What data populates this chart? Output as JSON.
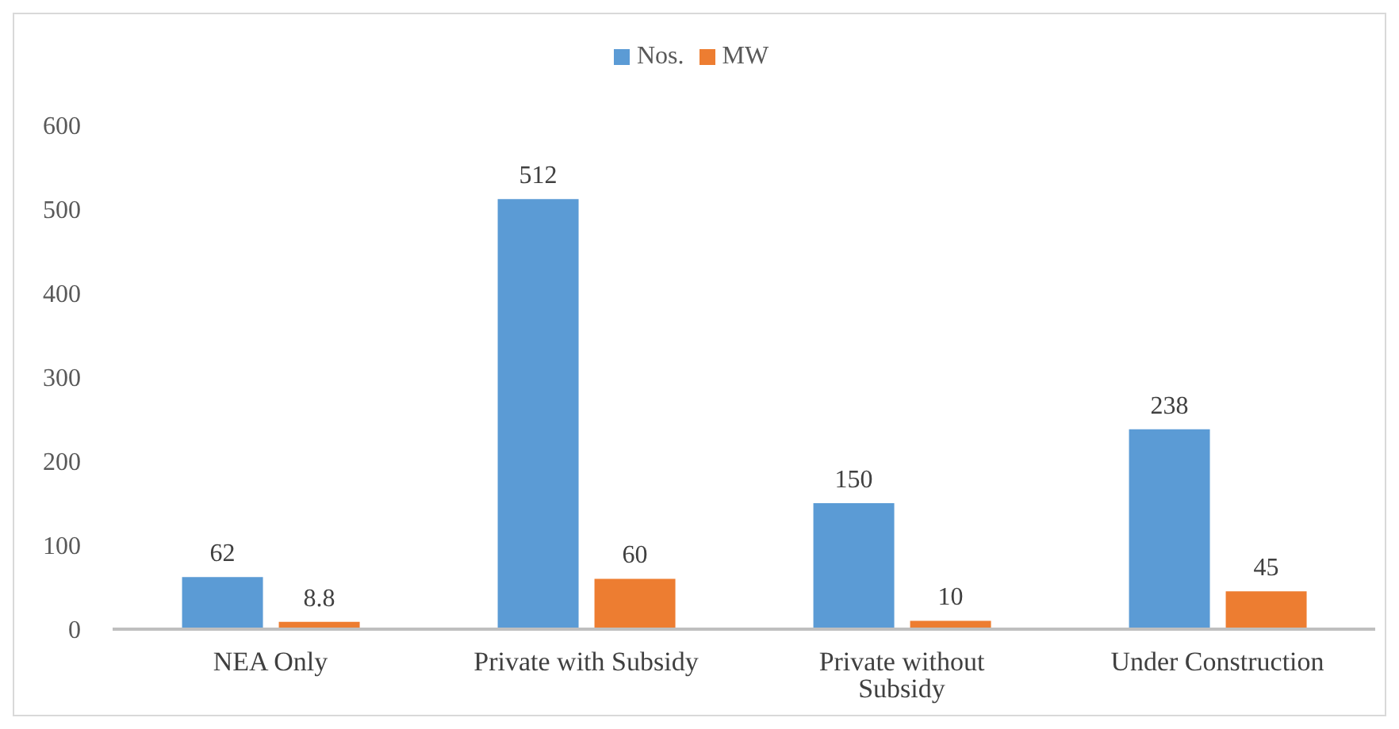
{
  "chart_data": {
    "type": "bar",
    "categories": [
      "NEA Only",
      "Private with Subsidy",
      "Private without Subsidy",
      "Under Construction"
    ],
    "series": [
      {
        "name": "Nos.",
        "color": "#5b9bd5",
        "values": [
          62,
          512,
          150,
          238
        ]
      },
      {
        "name": "MW",
        "color": "#ed7d31",
        "values": [
          8.8,
          60,
          10,
          45
        ]
      }
    ],
    "ylim": [
      0,
      600
    ],
    "yticks": [
      0,
      100,
      200,
      300,
      400,
      500,
      600
    ],
    "legend": "top",
    "data_labels": true
  }
}
